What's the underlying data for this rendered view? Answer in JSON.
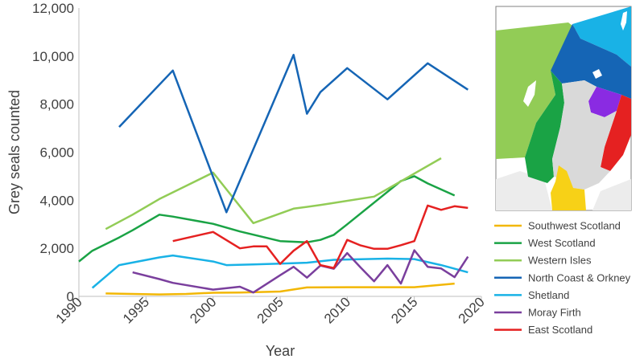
{
  "chart_data": {
    "type": "line",
    "title": "",
    "xlabel": "Year",
    "ylabel": "Grey seals counted",
    "xlim": [
      1990,
      2020
    ],
    "ylim": [
      0,
      12000
    ],
    "x_ticks": [
      1990,
      1995,
      2000,
      2005,
      2010,
      2015,
      2020
    ],
    "y_ticks": [
      {
        "value": 0,
        "label": "0"
      },
      {
        "value": 2000,
        "label": "2,000"
      },
      {
        "value": 4000,
        "label": "4,000"
      },
      {
        "value": 6000,
        "label": "6,000"
      },
      {
        "value": 8000,
        "label": "8,000"
      },
      {
        "value": 10000,
        "label": "10,000"
      },
      {
        "value": 12000,
        "label": "12,000"
      }
    ],
    "grid": false,
    "legend_position": "right",
    "series": [
      {
        "name": "Southwest Scotland",
        "color": "#f2b705",
        "x": [
          1992,
          1994,
          1996,
          1998,
          2000,
          2002,
          2005,
          2007,
          2010,
          2015,
          2018
        ],
        "y": [
          120,
          100,
          80,
          100,
          150,
          160,
          200,
          370,
          380,
          380,
          530
        ]
      },
      {
        "name": "West Scotland",
        "color": "#1aa345",
        "x": [
          1990,
          1991,
          1993,
          1994,
          1996,
          1997,
          2000,
          2002,
          2005,
          2007,
          2008,
          2009,
          2010,
          2012,
          2014,
          2015,
          2016,
          2018
        ],
        "y": [
          1450,
          1900,
          2450,
          2750,
          3400,
          3320,
          3020,
          2700,
          2300,
          2250,
          2350,
          2560,
          3000,
          3900,
          4800,
          5000,
          4700,
          4200
        ]
      },
      {
        "name": "Western Isles",
        "color": "#92cc56",
        "x": [
          1992,
          1994,
          1996,
          1998,
          2000,
          2003,
          2006,
          2008,
          2012,
          2017
        ],
        "y": [
          2800,
          3400,
          4050,
          4600,
          5150,
          3050,
          3650,
          3800,
          4150,
          5750
        ]
      },
      {
        "name": "North Coast & Orkney",
        "color": "#1565b5",
        "x": [
          1993,
          1997,
          2001,
          2006,
          2007,
          2008,
          2010,
          2013,
          2016,
          2019
        ],
        "y": [
          7050,
          9400,
          3500,
          10050,
          7600,
          8500,
          9500,
          8200,
          9700,
          8600
        ]
      },
      {
        "name": "Shetland",
        "color": "#19b2e6",
        "x": [
          1991,
          1993,
          1996,
          1997,
          2000,
          2001,
          2003,
          2005,
          2007,
          2009,
          2013,
          2015,
          2017,
          2019
        ],
        "y": [
          350,
          1300,
          1620,
          1700,
          1450,
          1300,
          1330,
          1360,
          1400,
          1520,
          1570,
          1550,
          1300,
          1000
        ]
      },
      {
        "name": "Moray Firth",
        "color": "#7a3f9d",
        "x": [
          1994,
          1996,
          1997,
          2000,
          2002,
          2003,
          2005,
          2006,
          2007,
          2008,
          2009,
          2010,
          2011,
          2012,
          2013,
          2014,
          2015,
          2016,
          2017,
          2018,
          2019
        ],
        "y": [
          1000,
          720,
          560,
          280,
          400,
          160,
          880,
          1230,
          780,
          1280,
          1150,
          1800,
          1200,
          630,
          1300,
          530,
          1920,
          1230,
          1160,
          800,
          1650
        ]
      },
      {
        "name": "East Scotland",
        "color": "#e52121",
        "x": [
          1997,
          2000,
          2002,
          2003,
          2004,
          2005,
          2006,
          2007,
          2008,
          2009,
          2010,
          2011,
          2012,
          2013,
          2014,
          2015,
          2016,
          2017,
          2018,
          2019
        ],
        "y": [
          2300,
          2680,
          2000,
          2080,
          2080,
          1350,
          1900,
          2300,
          1300,
          1180,
          2350,
          2120,
          1980,
          1980,
          2130,
          2300,
          3780,
          3600,
          3750,
          3680
        ]
      }
    ]
  },
  "map": {
    "colors": {
      "land": "#d9d9d9",
      "sea_dark": "#c9c9c9",
      "region_purple": "#8a2be2"
    }
  }
}
